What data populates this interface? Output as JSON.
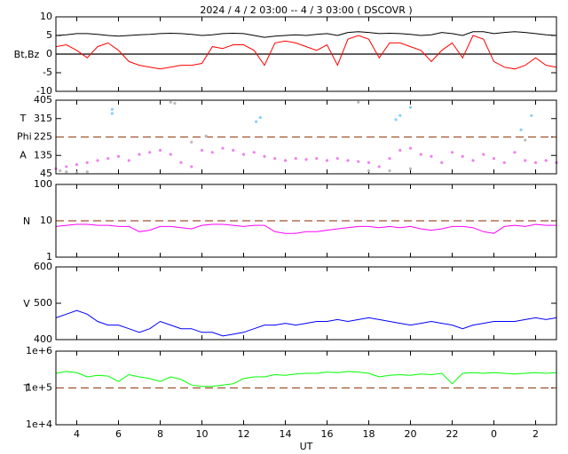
{
  "chart_data": [
    {
      "type": "line",
      "title": "2024 /  4 /  2   03:00  --  4 /  3   03:00 ( DSCOVR )",
      "ylabel": "Bt,Bz",
      "x": [
        3,
        3.5,
        4,
        4.5,
        5,
        5.5,
        6,
        6.5,
        7,
        7.5,
        8,
        8.5,
        9,
        9.5,
        10,
        10.5,
        11,
        11.5,
        12,
        12.5,
        13,
        13.5,
        14,
        14.5,
        15,
        15.5,
        16,
        16.5,
        17,
        17.5,
        18,
        18.5,
        19,
        19.5,
        20,
        20.5,
        21,
        21.5,
        22,
        22.5,
        23,
        23.5,
        24,
        24.5,
        25,
        25.5,
        26,
        26.5,
        27
      ],
      "xlim": [
        3,
        27
      ],
      "xticks": [
        4,
        6,
        8,
        10,
        12,
        14,
        16,
        18,
        20,
        22,
        {
          "value": 24,
          "label": "0"
        },
        {
          "value": 26,
          "label": "2"
        }
      ],
      "ylim": [
        -10,
        10
      ],
      "yticks": [
        -10,
        -5,
        0,
        5,
        10
      ],
      "hlines": [
        {
          "value": 0,
          "style": "solid",
          "color": "#000000"
        }
      ],
      "series": [
        {
          "color": "#000000",
          "values": [
            5,
            5.2,
            5.5,
            5.5,
            5.3,
            5,
            4.8,
            5,
            5.2,
            5.3,
            5.5,
            5.6,
            5.5,
            5.3,
            5,
            5.2,
            5.5,
            5.6,
            5.5,
            5,
            4.5,
            4.8,
            5,
            5.2,
            5,
            5.3,
            5.5,
            5,
            5.8,
            6,
            5.8,
            5.5,
            5.6,
            5.5,
            5.3,
            5,
            5.2,
            5.8,
            5.5,
            5,
            6,
            6,
            5.5,
            5.8,
            6,
            5.8,
            5.5,
            5.2,
            5
          ]
        },
        {
          "color": "#ff0000",
          "values": [
            2,
            2.5,
            1,
            -1,
            2,
            3,
            1,
            -2,
            -3,
            -3.5,
            -4,
            -3.5,
            -3,
            -3,
            -2.5,
            2,
            1.5,
            2.5,
            2.5,
            1,
            -3,
            3,
            3.5,
            3,
            2,
            1,
            2.5,
            -3,
            4,
            5,
            4,
            -1,
            3,
            3,
            2,
            1,
            -2,
            1,
            3,
            -1,
            5,
            4,
            -2,
            -3.5,
            -4,
            -3,
            -1,
            -3,
            -3.5
          ]
        }
      ]
    },
    {
      "type": "scatter",
      "ylabels": [
        "T",
        "Phi",
        "A"
      ],
      "xlim": [
        3,
        27
      ],
      "xticks": [
        4,
        6,
        8,
        10,
        12,
        14,
        16,
        18,
        20,
        22,
        {
          "value": 24,
          "label": "0"
        },
        {
          "value": 26,
          "label": "2"
        }
      ],
      "ylim": [
        45,
        405
      ],
      "yticks": [
        45,
        135,
        225,
        315,
        405
      ],
      "hlines": [
        {
          "value": 225,
          "style": "dashed",
          "color": "#a0522d"
        }
      ],
      "series": [
        {
          "color": "#ee82ee",
          "x": [
            3,
            3.5,
            4,
            4.5,
            5,
            5.5,
            6,
            6.5,
            7,
            7.5,
            8,
            8.5,
            9,
            9.5,
            10,
            10.5,
            11,
            11.5,
            12,
            12.5,
            13,
            13.5,
            14,
            14.5,
            15,
            15.5,
            16,
            16.5,
            17,
            17.5,
            18,
            18.5,
            19,
            19.5,
            20,
            20.5,
            21,
            21.5,
            22,
            22.5,
            23,
            23.5,
            24,
            24.5,
            25,
            25.5,
            26,
            26.5,
            27
          ],
          "values": [
            70,
            80,
            90,
            100,
            110,
            120,
            130,
            110,
            140,
            150,
            160,
            140,
            100,
            80,
            160,
            150,
            170,
            160,
            140,
            150,
            130,
            120,
            110,
            120,
            115,
            120,
            110,
            120,
            110,
            105,
            100,
            80,
            120,
            160,
            170,
            140,
            130,
            100,
            150,
            130,
            110,
            140,
            120,
            100,
            150,
            110,
            100,
            110,
            100
          ]
        },
        {
          "color": "#bbbbbb",
          "x": [
            3.2,
            3.5,
            4,
            4.5,
            8.5,
            8.7,
            9.5,
            10.2,
            17.5,
            18,
            19,
            20,
            25.5
          ],
          "values": [
            60,
            55,
            50,
            55,
            395,
            390,
            200,
            230,
            395,
            60,
            60,
            70,
            210
          ]
        },
        {
          "color": "#87cefa",
          "x": [
            5.7,
            5.7,
            12.6,
            12.8,
            19.3,
            19.5,
            20,
            25.3,
            25.8
          ],
          "values": [
            340,
            360,
            300,
            320,
            310,
            330,
            370,
            260,
            330
          ]
        }
      ]
    },
    {
      "type": "line",
      "ylabel": "N",
      "log": true,
      "x": [
        3,
        3.5,
        4,
        4.5,
        5,
        5.5,
        6,
        6.5,
        7,
        7.5,
        8,
        8.5,
        9,
        9.5,
        10,
        10.5,
        11,
        11.5,
        12,
        12.5,
        13,
        13.5,
        14,
        14.5,
        15,
        15.5,
        16,
        16.5,
        17,
        17.5,
        18,
        18.5,
        19,
        19.5,
        20,
        20.5,
        21,
        21.5,
        22,
        22.5,
        23,
        23.5,
        24,
        24.5,
        25,
        25.5,
        26,
        26.5,
        27
      ],
      "xlim": [
        3,
        27
      ],
      "xticks": [
        4,
        6,
        8,
        10,
        12,
        14,
        16,
        18,
        20,
        22,
        {
          "value": 24,
          "label": "0"
        },
        {
          "value": 26,
          "label": "2"
        }
      ],
      "ylim": [
        1,
        100
      ],
      "yticks": [
        1,
        10,
        100
      ],
      "hlines": [
        {
          "value": 10,
          "style": "dashed",
          "color": "#a0522d"
        }
      ],
      "series": [
        {
          "color": "#ff00ff",
          "values": [
            7,
            7.5,
            8,
            8,
            7.5,
            7.5,
            7,
            7,
            5,
            5.5,
            7,
            7,
            6.5,
            6,
            7.5,
            8,
            8,
            7.5,
            7,
            7.5,
            7.5,
            5,
            4.5,
            4.5,
            5,
            5,
            5.5,
            6,
            6.5,
            7,
            7,
            6.5,
            7,
            6.5,
            7,
            6,
            5.5,
            6,
            7,
            7,
            6.5,
            5,
            4.5,
            7,
            7.5,
            7,
            8,
            7.5,
            7.5
          ]
        }
      ]
    },
    {
      "type": "line",
      "ylabel": "V",
      "x": [
        3,
        3.5,
        4,
        4.5,
        5,
        5.5,
        6,
        6.5,
        7,
        7.5,
        8,
        8.5,
        9,
        9.5,
        10,
        10.5,
        11,
        11.5,
        12,
        12.5,
        13,
        13.5,
        14,
        14.5,
        15,
        15.5,
        16,
        16.5,
        17,
        17.5,
        18,
        18.5,
        19,
        19.5,
        20,
        20.5,
        21,
        21.5,
        22,
        22.5,
        23,
        23.5,
        24,
        24.5,
        25,
        25.5,
        26,
        26.5,
        27
      ],
      "xlim": [
        3,
        27
      ],
      "xticks": [
        4,
        6,
        8,
        10,
        12,
        14,
        16,
        18,
        20,
        22,
        {
          "value": 24,
          "label": "0"
        },
        {
          "value": 26,
          "label": "2"
        }
      ],
      "ylim": [
        400,
        600
      ],
      "yticks": [
        400,
        500,
        600
      ],
      "series": [
        {
          "color": "#0000ff",
          "values": [
            460,
            470,
            480,
            470,
            450,
            440,
            440,
            430,
            420,
            430,
            450,
            440,
            430,
            430,
            420,
            420,
            410,
            415,
            420,
            430,
            440,
            440,
            445,
            440,
            445,
            450,
            450,
            455,
            450,
            455,
            460,
            455,
            450,
            445,
            440,
            445,
            450,
            445,
            440,
            430,
            440,
            445,
            450,
            450,
            450,
            455,
            460,
            455,
            460
          ]
        }
      ]
    },
    {
      "type": "line",
      "ylabel": "T",
      "log": true,
      "xlabel": "UT",
      "x": [
        3,
        3.5,
        4,
        4.5,
        5,
        5.5,
        6,
        6.5,
        7,
        7.5,
        8,
        8.5,
        9,
        9.5,
        10,
        10.5,
        11,
        11.5,
        12,
        12.5,
        13,
        13.5,
        14,
        14.5,
        15,
        15.5,
        16,
        16.5,
        17,
        17.5,
        18,
        18.5,
        19,
        19.5,
        20,
        20.5,
        21,
        21.5,
        22,
        22.5,
        23,
        23.5,
        24,
        24.5,
        25,
        25.5,
        26,
        26.5,
        27
      ],
      "xlim": [
        3,
        27
      ],
      "xticks": [
        4,
        6,
        8,
        10,
        12,
        14,
        16,
        18,
        20,
        22,
        {
          "value": 24,
          "label": "0"
        },
        {
          "value": 26,
          "label": "2"
        }
      ],
      "xticklabels": true,
      "ylim": [
        10000,
        1000000
      ],
      "yticks": [
        {
          "value": 10000,
          "label": "1e+4"
        },
        {
          "value": 100000,
          "label": "1e+5"
        },
        {
          "value": 1000000,
          "label": "1e+6"
        }
      ],
      "hlines": [
        {
          "value": 100000,
          "style": "dashed",
          "color": "#a0522d"
        }
      ],
      "series": [
        {
          "color": "#00ff00",
          "values": [
            250000,
            280000,
            260000,
            200000,
            220000,
            210000,
            150000,
            230000,
            200000,
            180000,
            150000,
            200000,
            170000,
            120000,
            110000,
            110000,
            120000,
            130000,
            180000,
            200000,
            200000,
            230000,
            220000,
            240000,
            250000,
            250000,
            270000,
            260000,
            280000,
            270000,
            250000,
            200000,
            220000,
            230000,
            220000,
            240000,
            230000,
            250000,
            130000,
            250000,
            260000,
            250000,
            260000,
            250000,
            240000,
            250000,
            260000,
            250000,
            260000
          ]
        }
      ]
    }
  ]
}
